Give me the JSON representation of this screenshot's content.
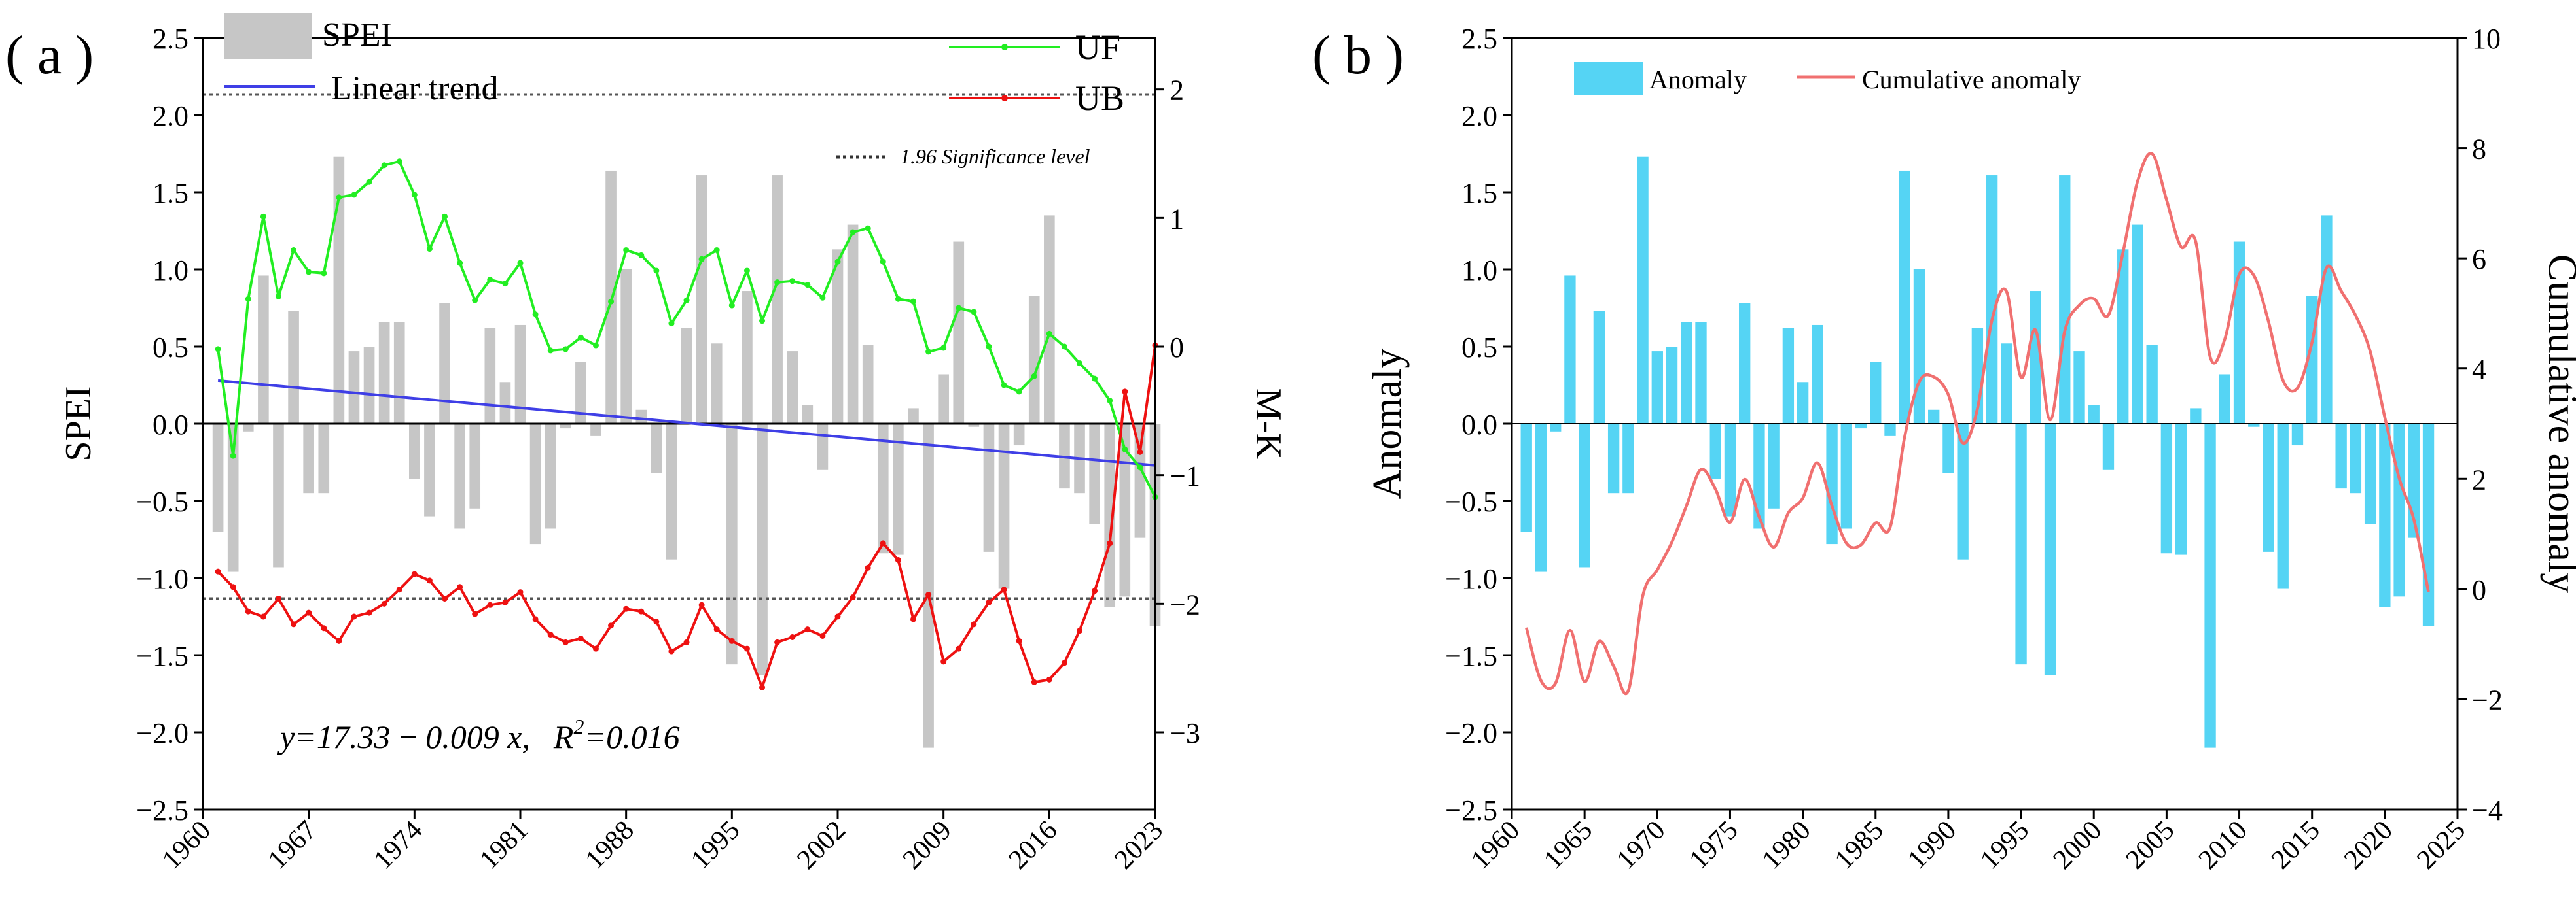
{
  "panel_labels": {
    "a": "( a )",
    "b": "( b )"
  },
  "colors": {
    "spei_bar": "#c6c6c6",
    "trend": "#3f3fe6",
    "uf": "#22ee22",
    "ub": "#ee1111",
    "anomaly_bar": "#55d4f4",
    "cumulative": "#f07070",
    "equation": "#1a1ae6"
  },
  "panel_a": {
    "left_axis_label": "SPEI",
    "right_axis_label": "M-K",
    "legend": {
      "spei": "SPEI",
      "trend": "Linear trend",
      "uf": "UF",
      "ub": "UB",
      "significance": "1.96 Significance level"
    },
    "equation": {
      "lhs": "y=17.33 − 0.009 x,",
      "r": "R",
      "sup": "2",
      "rhs": "=0.016"
    }
  },
  "panel_b": {
    "left_axis_label": "Anomaly",
    "right_axis_label": "Cumulative anomaly",
    "legend": {
      "anomaly": "Anomaly",
      "cumulative": "Cumulative anomaly"
    }
  },
  "chart_data": [
    {
      "type": "bar",
      "title": "",
      "xlabel": "",
      "ylabel": "SPEI",
      "y2label": "M-K",
      "ylim": [
        -2.5,
        2.5
      ],
      "y2lim": [
        -3.6,
        2.4
      ],
      "xlim": [
        1960,
        2023
      ],
      "xticks": [
        1960,
        1967,
        1974,
        1981,
        1988,
        1995,
        2002,
        2009,
        2016,
        2023
      ],
      "yticks": [
        -2.5,
        -2.0,
        -1.5,
        -1.0,
        -0.5,
        0.0,
        0.5,
        1.0,
        1.5,
        2.0,
        2.5
      ],
      "y2ticks": [
        -3,
        -2,
        -1,
        0,
        1,
        2
      ],
      "significance_levels": [
        1.96,
        -1.96
      ],
      "years": [
        1961,
        1962,
        1963,
        1964,
        1965,
        1966,
        1967,
        1968,
        1969,
        1970,
        1971,
        1972,
        1973,
        1974,
        1975,
        1976,
        1977,
        1978,
        1979,
        1980,
        1981,
        1982,
        1983,
        1984,
        1985,
        1986,
        1987,
        1988,
        1989,
        1990,
        1991,
        1992,
        1993,
        1994,
        1995,
        1996,
        1997,
        1998,
        1999,
        2000,
        2001,
        2002,
        2003,
        2004,
        2005,
        2006,
        2007,
        2008,
        2009,
        2010,
        2011,
        2012,
        2013,
        2014,
        2015,
        2016,
        2017,
        2018,
        2019,
        2020,
        2021,
        2022,
        2023
      ],
      "series": [
        {
          "name": "SPEI",
          "kind": "bar",
          "axis": "left",
          "values": [
            -0.7,
            -0.96,
            -0.05,
            0.96,
            -0.93,
            0.73,
            -0.45,
            -0.45,
            1.73,
            0.47,
            0.5,
            0.66,
            0.66,
            -0.36,
            -0.6,
            0.78,
            -0.68,
            -0.55,
            0.62,
            0.27,
            0.64,
            -0.78,
            -0.68,
            -0.03,
            0.4,
            -0.08,
            1.64,
            1.0,
            0.09,
            -0.32,
            -0.88,
            0.62,
            1.61,
            0.52,
            -1.56,
            0.86,
            -1.63,
            1.61,
            0.47,
            0.12,
            -0.3,
            1.13,
            1.29,
            0.51,
            -0.84,
            -0.85,
            0.1,
            -2.1,
            0.32,
            1.18,
            -0.02,
            -0.83,
            -1.07,
            -0.14,
            0.83,
            1.35,
            -0.42,
            -0.45,
            -0.65,
            -1.19,
            -1.12,
            -0.74,
            -1.31
          ]
        },
        {
          "name": "Linear trend",
          "kind": "line",
          "axis": "left",
          "x": [
            1961,
            2023
          ],
          "values": [
            0.28,
            -0.27
          ]
        },
        {
          "name": "UF",
          "kind": "line",
          "axis": "right",
          "values": [
            -0.02,
            -0.85,
            0.37,
            1.01,
            0.39,
            0.75,
            0.58,
            0.57,
            1.16,
            1.18,
            1.28,
            1.41,
            1.44,
            1.18,
            0.76,
            1.01,
            0.65,
            0.36,
            0.52,
            0.49,
            0.65,
            0.25,
            -0.03,
            -0.02,
            0.07,
            0.01,
            0.35,
            0.75,
            0.71,
            0.59,
            0.18,
            0.36,
            0.68,
            0.75,
            0.32,
            0.59,
            0.2,
            0.5,
            0.51,
            0.48,
            0.38,
            0.66,
            0.89,
            0.92,
            0.66,
            0.37,
            0.35,
            -0.04,
            -0.01,
            0.3,
            0.27,
            0.0,
            -0.3,
            -0.35,
            -0.23,
            0.1,
            0.0,
            -0.13,
            -0.25,
            -0.42,
            -0.8,
            -0.94,
            -1.17
          ]
        },
        {
          "name": "UB",
          "kind": "line",
          "axis": "right",
          "values": [
            -1.75,
            -1.87,
            -2.06,
            -2.1,
            -1.96,
            -2.16,
            -2.07,
            -2.19,
            -2.29,
            -2.1,
            -2.07,
            -2.0,
            -1.89,
            -1.77,
            -1.82,
            -1.96,
            -1.87,
            -2.08,
            -2.01,
            -1.99,
            -1.91,
            -2.12,
            -2.24,
            -2.3,
            -2.27,
            -2.35,
            -2.17,
            -2.04,
            -2.06,
            -2.14,
            -2.37,
            -2.3,
            -2.01,
            -2.2,
            -2.29,
            -2.35,
            -2.65,
            -2.3,
            -2.26,
            -2.2,
            -2.25,
            -2.1,
            -1.95,
            -1.72,
            -1.53,
            -1.66,
            -2.12,
            -1.93,
            -2.45,
            -2.35,
            -2.16,
            -1.99,
            -1.89,
            -2.29,
            -2.61,
            -2.59,
            -2.46,
            -2.21,
            -1.9,
            -1.53,
            -0.35,
            -0.82,
            0.01
          ]
        }
      ]
    },
    {
      "type": "bar",
      "title": "",
      "xlabel": "",
      "ylabel": "Anomaly",
      "y2label": "Cumulative anomaly",
      "ylim": [
        -2.5,
        2.5
      ],
      "y2lim": [
        -4,
        10
      ],
      "xlim": [
        1960,
        2025
      ],
      "xticks": [
        1960,
        1965,
        1970,
        1975,
        1980,
        1985,
        1990,
        1995,
        2000,
        2005,
        2010,
        2015,
        2020,
        2025
      ],
      "yticks": [
        -2.5,
        -2.0,
        -1.5,
        -1.0,
        -0.5,
        0.0,
        0.5,
        1.0,
        1.5,
        2.0,
        2.5
      ],
      "y2ticks": [
        -4,
        -2,
        0,
        2,
        4,
        6,
        8,
        10
      ],
      "years": [
        1961,
        1962,
        1963,
        1964,
        1965,
        1966,
        1967,
        1968,
        1969,
        1970,
        1971,
        1972,
        1973,
        1974,
        1975,
        1976,
        1977,
        1978,
        1979,
        1980,
        1981,
        1982,
        1983,
        1984,
        1985,
        1986,
        1987,
        1988,
        1989,
        1990,
        1991,
        1992,
        1993,
        1994,
        1995,
        1996,
        1997,
        1998,
        1999,
        2000,
        2001,
        2002,
        2003,
        2004,
        2005,
        2006,
        2007,
        2008,
        2009,
        2010,
        2011,
        2012,
        2013,
        2014,
        2015,
        2016,
        2017,
        2018,
        2019,
        2020,
        2021,
        2022,
        2023
      ],
      "series": [
        {
          "name": "Anomaly",
          "kind": "bar",
          "axis": "left",
          "values": [
            -0.7,
            -0.96,
            -0.05,
            0.96,
            -0.93,
            0.73,
            -0.45,
            -0.45,
            1.73,
            0.47,
            0.5,
            0.66,
            0.66,
            -0.36,
            -0.6,
            0.78,
            -0.68,
            -0.55,
            0.62,
            0.27,
            0.64,
            -0.78,
            -0.68,
            -0.03,
            0.4,
            -0.08,
            1.64,
            1.0,
            0.09,
            -0.32,
            -0.88,
            0.62,
            1.61,
            0.52,
            -1.56,
            0.86,
            -1.63,
            1.61,
            0.47,
            0.12,
            -0.3,
            1.13,
            1.29,
            0.51,
            -0.84,
            -0.85,
            0.1,
            -2.1,
            0.32,
            1.18,
            -0.02,
            -0.83,
            -1.07,
            -0.14,
            0.83,
            1.35,
            -0.42,
            -0.45,
            -0.65,
            -1.19,
            -1.12,
            -0.74,
            -1.31
          ]
        },
        {
          "name": "Cumulative anomaly",
          "kind": "line",
          "axis": "right",
          "values": [
            -0.7,
            -1.66,
            -1.71,
            -0.75,
            -1.68,
            -0.95,
            -1.4,
            -1.85,
            -0.12,
            0.35,
            0.85,
            1.51,
            2.17,
            1.81,
            1.21,
            1.99,
            1.31,
            0.76,
            1.38,
            1.65,
            2.29,
            1.51,
            0.83,
            0.8,
            1.2,
            1.12,
            2.76,
            3.76,
            3.85,
            3.53,
            2.65,
            3.27,
            4.88,
            5.4,
            3.84,
            4.7,
            3.07,
            4.68,
            5.15,
            5.27,
            4.97,
            6.1,
            7.39,
            7.9,
            7.06,
            6.21,
            6.31,
            4.21,
            4.53,
            5.71,
            5.69,
            4.86,
            3.79,
            3.65,
            4.48,
            5.83,
            5.41,
            4.96,
            4.31,
            3.12,
            2.0,
            1.26,
            -0.05
          ]
        }
      ]
    }
  ]
}
